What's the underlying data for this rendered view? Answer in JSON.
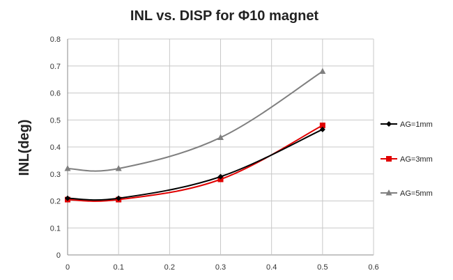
{
  "chart_data": {
    "type": "line",
    "title": "INL vs. DISP for Φ10 magnet",
    "xlabel": "",
    "ylabel": "INL(deg)",
    "xlim": [
      0,
      0.6
    ],
    "ylim": [
      0,
      0.8
    ],
    "xticks": [
      "0",
      "0.1",
      "0.2",
      "0.3",
      "0.4",
      "0.5",
      "0.6"
    ],
    "yticks": [
      "0",
      "0.1",
      "0.2",
      "0.3",
      "0.4",
      "0.5",
      "0.6",
      "0.7",
      "0.8"
    ],
    "grid": true,
    "legend_position": "right",
    "series": [
      {
        "name": "AG=1mm",
        "color": "#000000",
        "marker": "diamond",
        "x": [
          0,
          0.1,
          0.3,
          0.5
        ],
        "y": [
          0.21,
          0.21,
          0.29,
          0.465
        ]
      },
      {
        "name": "AG=3mm",
        "color": "#e00000",
        "marker": "square",
        "x": [
          0,
          0.1,
          0.3,
          0.5
        ],
        "y": [
          0.205,
          0.205,
          0.28,
          0.48
        ]
      },
      {
        "name": "AG=5mm",
        "color": "#7f7f7f",
        "marker": "triangle",
        "x": [
          0,
          0.1,
          0.3,
          0.5
        ],
        "y": [
          0.32,
          0.32,
          0.435,
          0.68
        ]
      }
    ]
  }
}
